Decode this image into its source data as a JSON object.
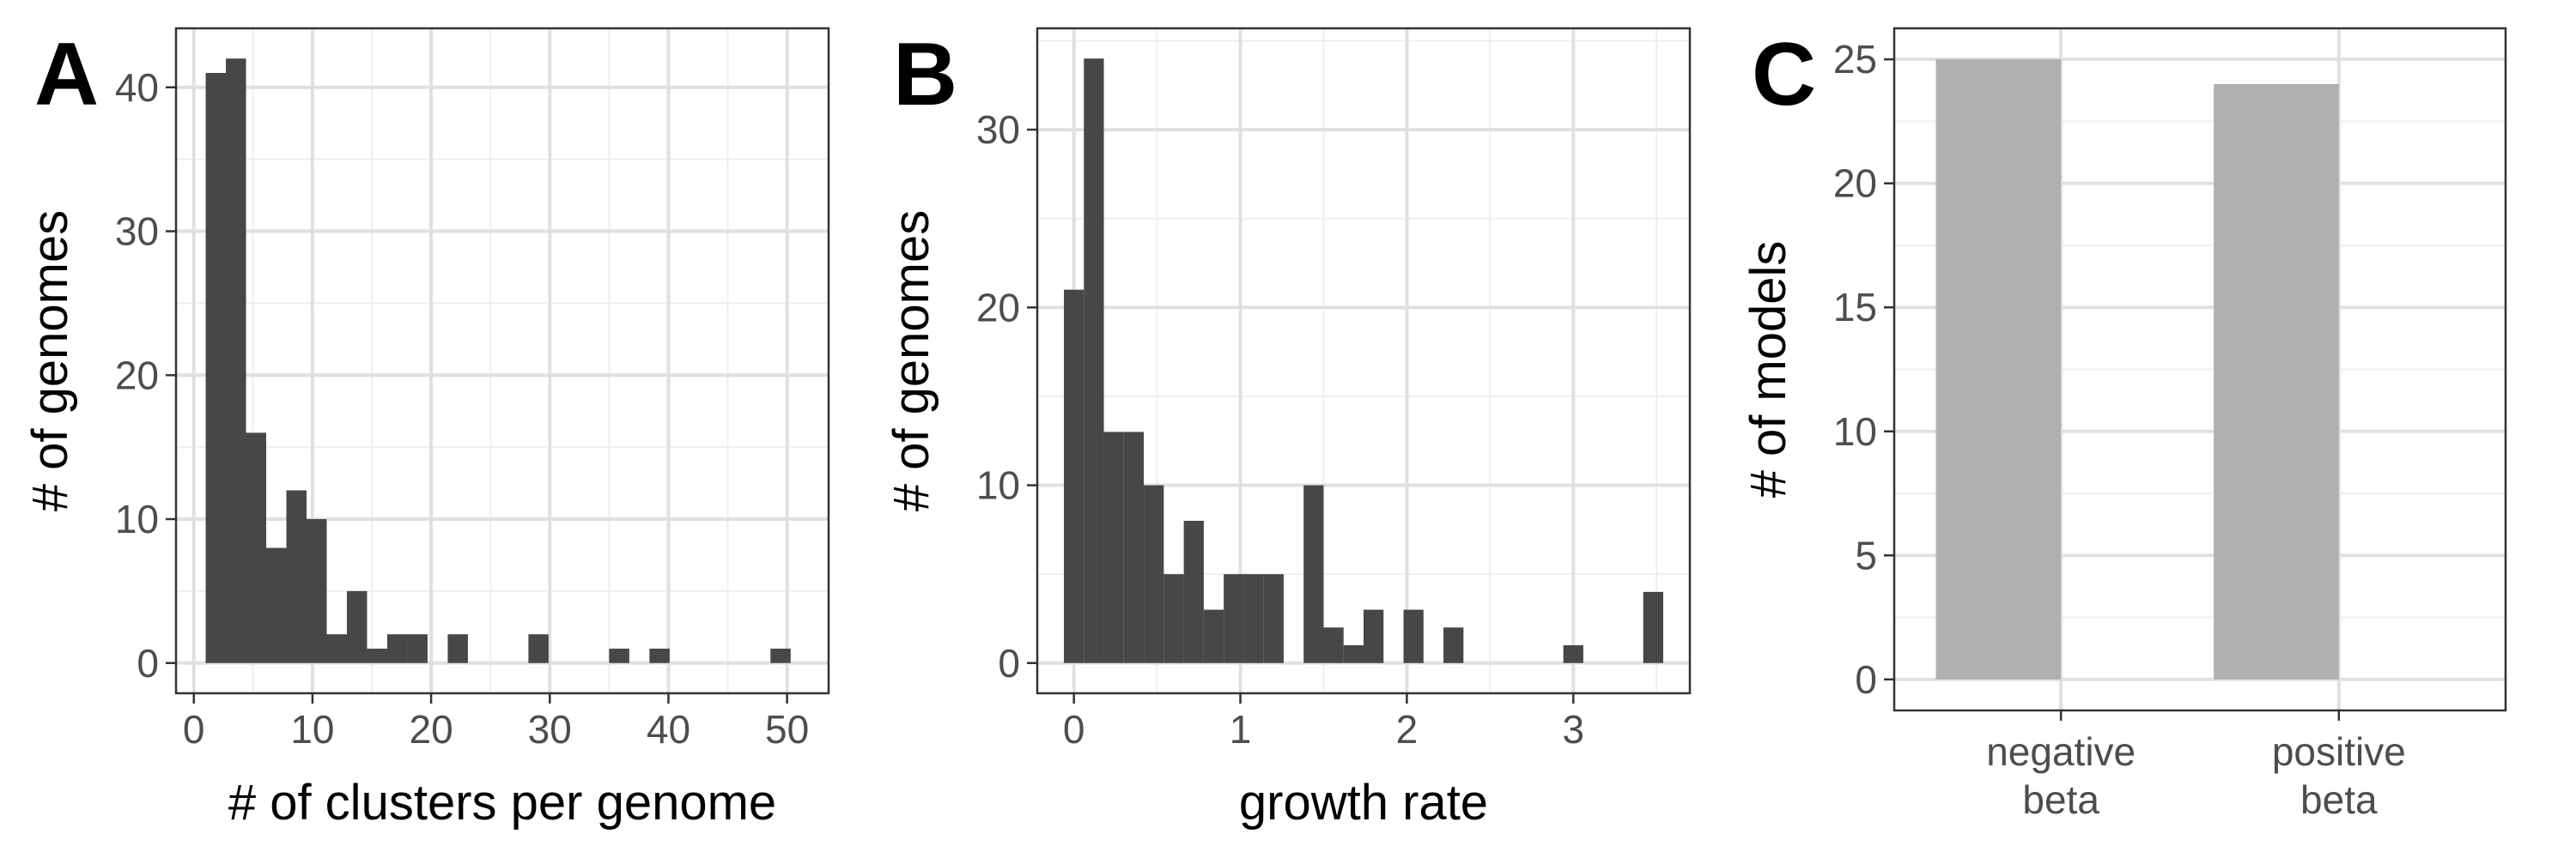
{
  "chart_data": [
    {
      "panel": "A",
      "type": "bar",
      "subtype": "histogram",
      "xlabel": "# of clusters per genome",
      "ylabel": "# of genomes",
      "xlim": [
        -1.5,
        53.5
      ],
      "ylim": [
        -2.1,
        44.1
      ],
      "xticks": [
        0,
        10,
        20,
        30,
        40,
        50
      ],
      "yticks": [
        0,
        10,
        20,
        30,
        40
      ],
      "bin_width": 1.7,
      "bins": [
        {
          "x": 1.85,
          "count": 41
        },
        {
          "x": 3.55,
          "count": 42
        },
        {
          "x": 5.25,
          "count": 16
        },
        {
          "x": 6.95,
          "count": 8
        },
        {
          "x": 8.65,
          "count": 12
        },
        {
          "x": 10.35,
          "count": 10
        },
        {
          "x": 12.05,
          "count": 2
        },
        {
          "x": 13.75,
          "count": 5
        },
        {
          "x": 15.45,
          "count": 1
        },
        {
          "x": 17.15,
          "count": 2
        },
        {
          "x": 18.85,
          "count": 2
        },
        {
          "x": 22.25,
          "count": 2
        },
        {
          "x": 29.05,
          "count": 2
        },
        {
          "x": 35.85,
          "count": 1
        },
        {
          "x": 39.25,
          "count": 1
        },
        {
          "x": 49.45,
          "count": 1
        }
      ],
      "bar_color": "#474747"
    },
    {
      "panel": "B",
      "type": "bar",
      "subtype": "histogram",
      "xlabel": "growth rate",
      "ylabel": "# of genomes",
      "xlim": [
        -0.22,
        3.7
      ],
      "ylim": [
        -1.7,
        35.7
      ],
      "xticks": [
        0,
        1,
        2,
        3
      ],
      "yticks": [
        0,
        10,
        20,
        30
      ],
      "bin_width": 0.12,
      "bins": [
        {
          "x": 0.0,
          "count": 21
        },
        {
          "x": 0.12,
          "count": 34
        },
        {
          "x": 0.24,
          "count": 13
        },
        {
          "x": 0.36,
          "count": 13
        },
        {
          "x": 0.48,
          "count": 10
        },
        {
          "x": 0.6,
          "count": 5
        },
        {
          "x": 0.72,
          "count": 8
        },
        {
          "x": 0.84,
          "count": 3
        },
        {
          "x": 0.96,
          "count": 5
        },
        {
          "x": 1.08,
          "count": 5
        },
        {
          "x": 1.2,
          "count": 5
        },
        {
          "x": 1.44,
          "count": 10
        },
        {
          "x": 1.56,
          "count": 2
        },
        {
          "x": 1.68,
          "count": 1
        },
        {
          "x": 1.8,
          "count": 3
        },
        {
          "x": 2.04,
          "count": 3
        },
        {
          "x": 2.28,
          "count": 2
        },
        {
          "x": 3.0,
          "count": 1
        },
        {
          "x": 3.48,
          "count": 4
        }
      ],
      "bar_color": "#474747"
    },
    {
      "panel": "C",
      "type": "bar",
      "categories": [
        [
          "negative",
          "beta"
        ],
        [
          "positive",
          "beta"
        ]
      ],
      "values": [
        25,
        24
      ],
      "xlabel": "",
      "ylabel": "# of models",
      "ylim": [
        -1.25,
        26.25
      ],
      "yticks": [
        0,
        5,
        10,
        15,
        20,
        25
      ],
      "bar_color": "#b0b0b0"
    }
  ],
  "panel_labels": [
    "A",
    "B",
    "C"
  ]
}
